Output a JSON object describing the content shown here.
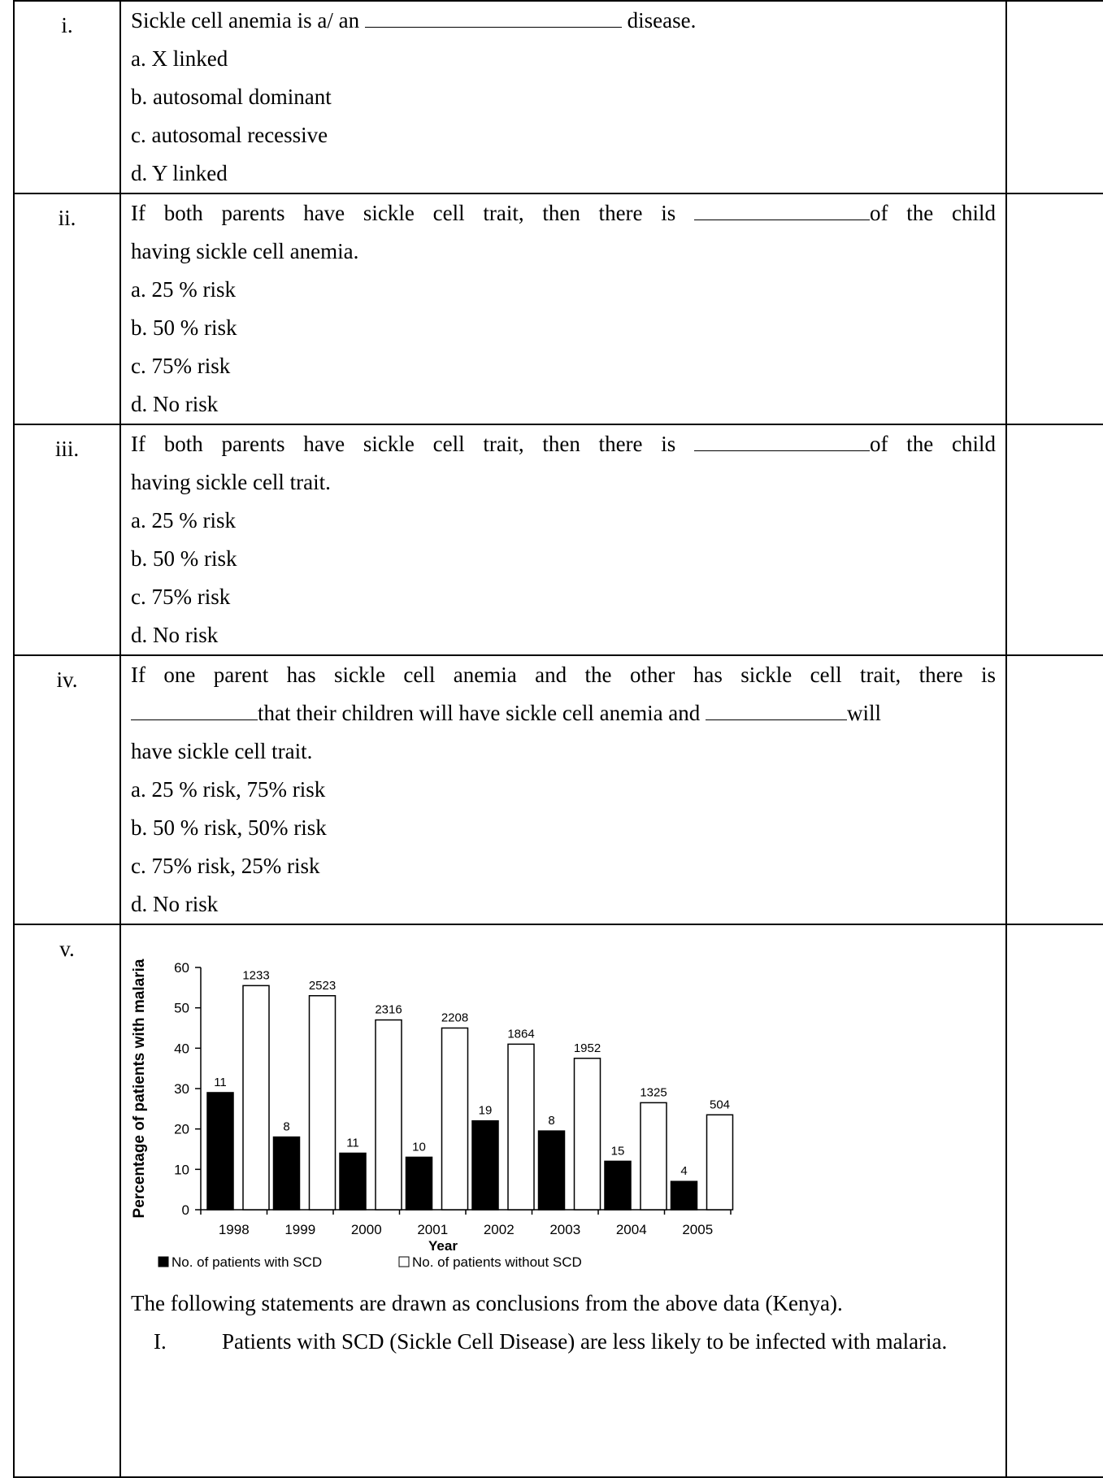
{
  "questions": [
    {
      "num": "i.",
      "stem_before": "Sickle cell anemia is a/ an",
      "stem_after": "disease.",
      "options": [
        "a. X linked",
        "b. autosomal dominant",
        "c. autosomal recessive",
        "d. Y linked"
      ]
    },
    {
      "num": "ii.",
      "stem_before": "If both parents have sickle cell trait, then there is",
      "stem_after": "of the child",
      "stem_line2": "having sickle cell anemia.",
      "options": [
        "a. 25 % risk",
        "b. 50 % risk",
        "c. 75% risk",
        "d. No risk"
      ]
    },
    {
      "num": "iii.",
      "stem_before": "If both parents have sickle cell trait, then there is",
      "stem_after": "of the child",
      "stem_line2": "having sickle cell trait.",
      "options": [
        "a. 25 % risk",
        "b. 50 % risk",
        "c. 75% risk",
        "d. No risk"
      ]
    },
    {
      "num": "iv.",
      "stem_line1": "If one parent has sickle cell anemia and the other has sickle cell trait, there is",
      "stem_line2_mid": "that their children will have sickle cell anemia and",
      "stem_line2_end": "will",
      "stem_line3": "have sickle cell trait.",
      "options": [
        "a. 25 % risk, 75% risk",
        "b. 50 % risk, 50% risk",
        "c. 75% risk, 25% risk",
        "d. No risk"
      ]
    },
    {
      "num": "v.",
      "conclusion_intro": "The following statements are drawn as conclusions from the above data (Kenya).",
      "statements": [
        {
          "roman": "I.",
          "text": "Patients with SCD (Sickle Cell Disease) are less likely to be infected with malaria."
        }
      ]
    }
  ],
  "chart_data": {
    "type": "bar",
    "categories": [
      "1998",
      "1999",
      "2000",
      "2001",
      "2002",
      "2003",
      "2004",
      "2005"
    ],
    "series": [
      {
        "name": "No. of patients with SCD",
        "values": [
          29,
          18,
          14,
          13,
          22,
          19.5,
          12,
          7
        ],
        "labels": [
          "11",
          "8",
          "11",
          "10",
          "19",
          "8",
          "15",
          "4"
        ],
        "color": "#000000"
      },
      {
        "name": "No. of patients without SCD",
        "values": [
          55.5,
          53,
          47,
          45,
          41,
          37.5,
          26.5,
          23.5
        ],
        "labels": [
          "1233",
          "2523",
          "2316",
          "2208",
          "1864",
          "1952",
          "1325",
          "504"
        ],
        "color": "#ffffff"
      }
    ],
    "xlabel": "Year",
    "ylabel": "Percentage of patients with malaria",
    "ylim": [
      0,
      60
    ],
    "yticks": [
      "0",
      "10",
      "20",
      "30",
      "40",
      "50",
      "60"
    ],
    "legend_position": "bottom"
  }
}
